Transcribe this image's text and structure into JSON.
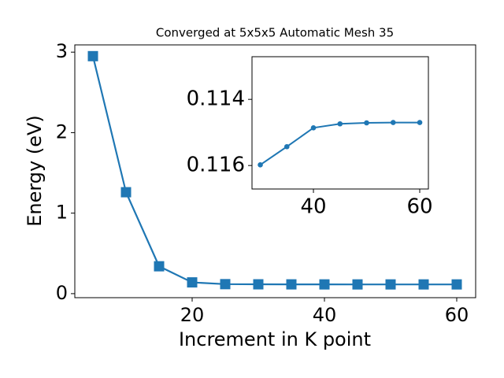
{
  "chart_data": [
    {
      "type": "line",
      "title": "Converged at 5x5x5 Automatic Mesh 35",
      "x_label": "Increment in K point",
      "y_label": "Energy (eV)",
      "x": [
        5,
        10,
        15,
        20,
        25,
        30,
        35,
        40,
        45,
        50,
        55,
        60
      ],
      "values": [
        2.95,
        1.26,
        0.34,
        0.14,
        0.118,
        0.116,
        0.1154,
        0.1149,
        0.1147,
        0.1147,
        0.1147,
        0.1147
      ],
      "color": "#1f77b4",
      "marker": "square",
      "xlim": [
        2.26,
        62.86
      ],
      "ylim": [
        -0.05,
        3.09
      ],
      "xticks": [
        20,
        40,
        60
      ],
      "yticks": [
        0,
        1,
        2,
        3
      ]
    },
    {
      "type": "line",
      "x": [
        30,
        35,
        40,
        45,
        50,
        55,
        60
      ],
      "values": [
        0.11598,
        0.11543,
        0.11486,
        0.11474,
        0.11471,
        0.1147,
        0.1147
      ],
      "color": "#1f77b4",
      "marker": "circle",
      "xlim": [
        28.44,
        61.63
      ],
      "ylim": [
        0.11671,
        0.11271
      ],
      "xticks": [
        40,
        60
      ],
      "yticks": [
        0.114,
        0.116
      ]
    }
  ]
}
